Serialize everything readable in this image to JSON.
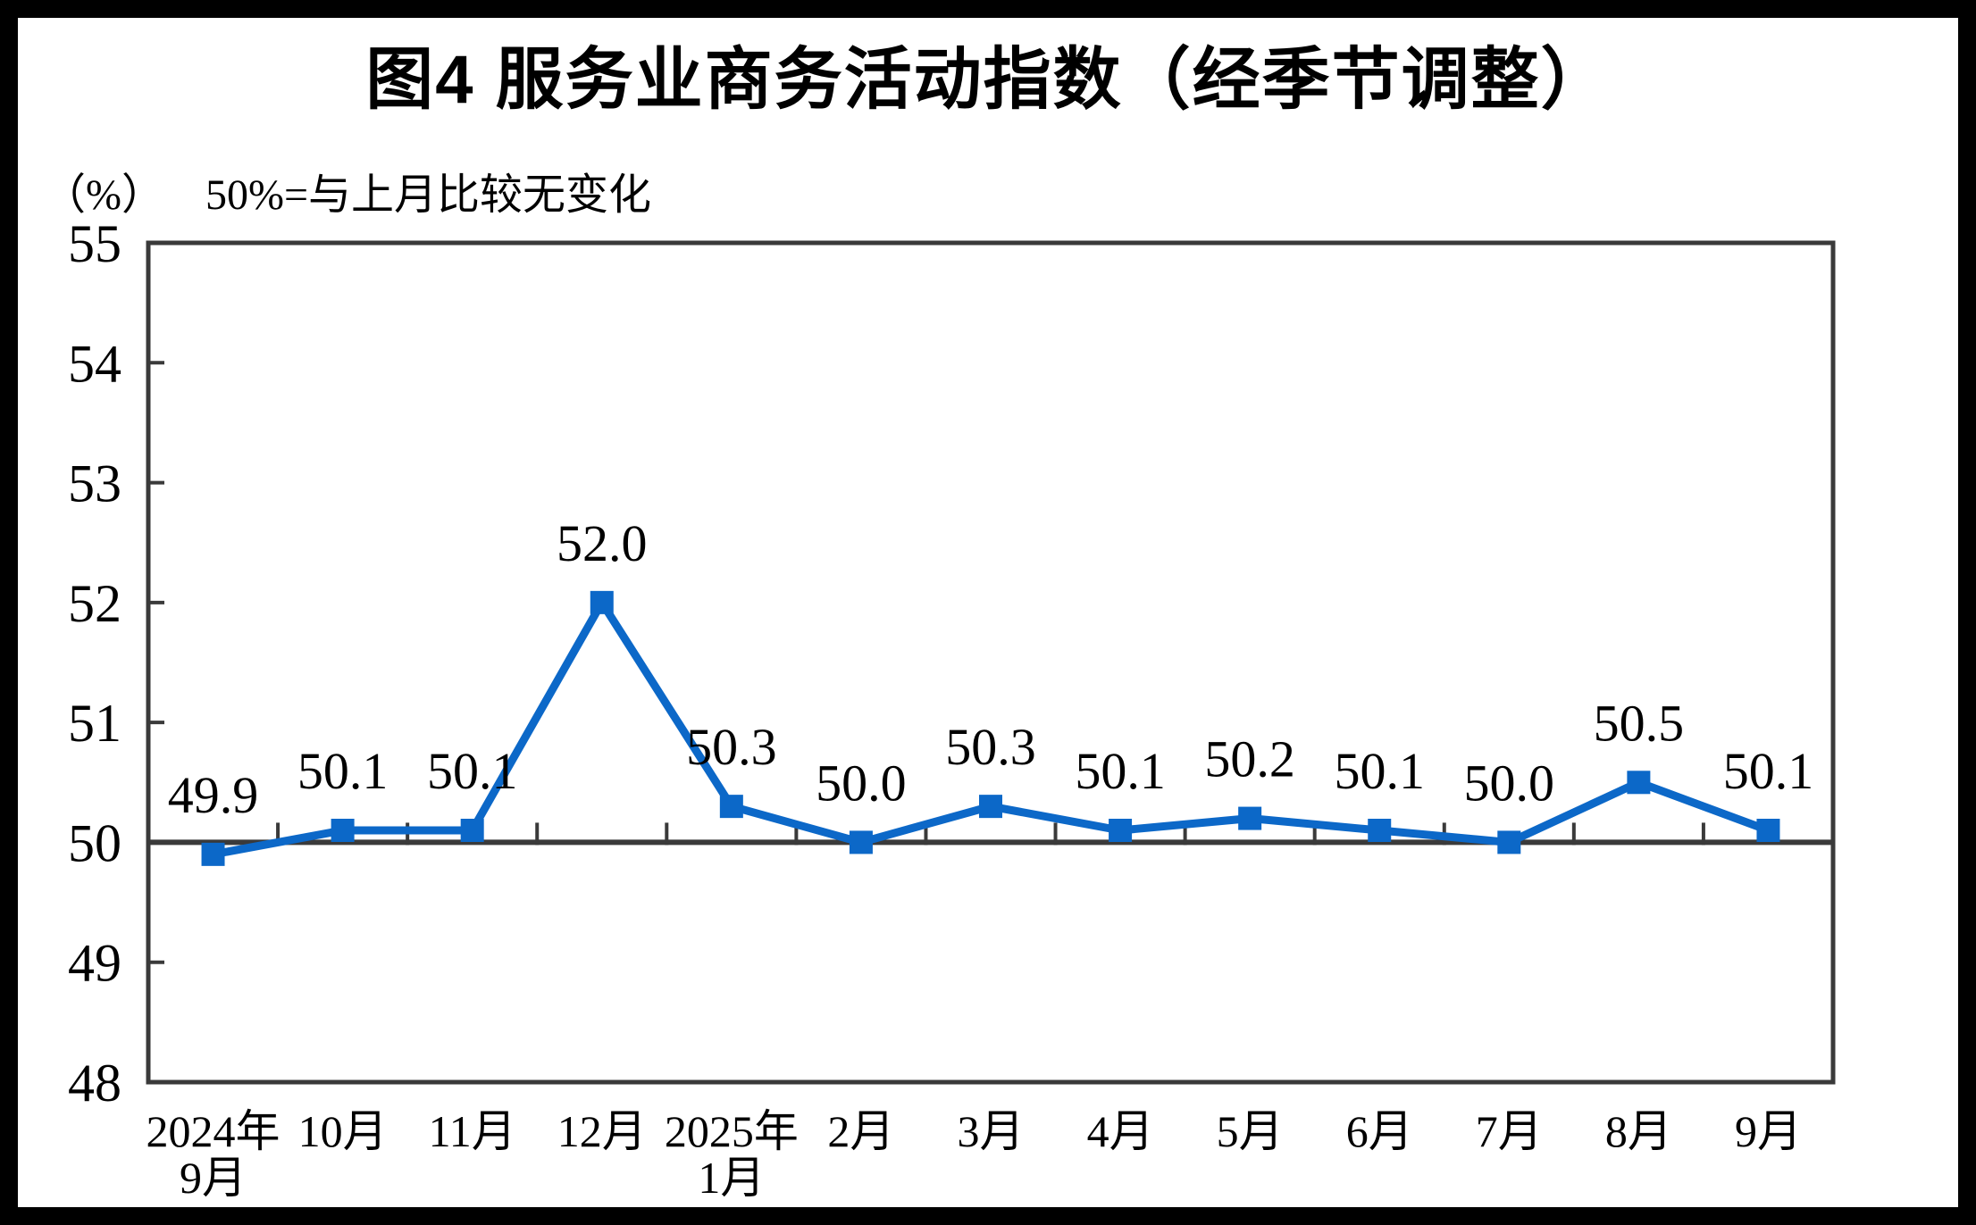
{
  "figure": {
    "title": "图4 服务业商务活动指数（经季节调整）",
    "unit_label": "（%）",
    "baseline_note": "50%=与上月比较无变化"
  },
  "chart_data": {
    "type": "line",
    "title": "图4 服务业商务活动指数（经季节调整）",
    "categories": [
      {
        "line1": "2024年",
        "line2": "9月"
      },
      {
        "line1": "10月"
      },
      {
        "line1": "11月"
      },
      {
        "line1": "12月"
      },
      {
        "line1": "2025年",
        "line2": "1月"
      },
      {
        "line1": "2月"
      },
      {
        "line1": "3月"
      },
      {
        "line1": "4月"
      },
      {
        "line1": "5月"
      },
      {
        "line1": "6月"
      },
      {
        "line1": "7月"
      },
      {
        "line1": "8月"
      },
      {
        "line1": "9月"
      }
    ],
    "values": [
      49.9,
      50.1,
      50.1,
      52.0,
      50.3,
      50.0,
      50.3,
      50.1,
      50.2,
      50.1,
      50.0,
      50.5,
      50.1
    ],
    "data_labels": [
      "49.9",
      "50.1",
      "50.1",
      "52.0",
      "50.3",
      "50.0",
      "50.3",
      "50.1",
      "50.2",
      "50.1",
      "50.0",
      "50.5",
      "50.1"
    ],
    "ylim": [
      48,
      55
    ],
    "yticks": [
      48,
      49,
      50,
      51,
      52,
      53,
      54,
      55
    ],
    "baseline_value": 50,
    "grid": false,
    "legend": "none",
    "colors": {
      "series": "#0C68C8",
      "axis": "#3A3A3A",
      "text": "#000000",
      "background": "#FFFFFF",
      "frame": "#000000"
    }
  }
}
